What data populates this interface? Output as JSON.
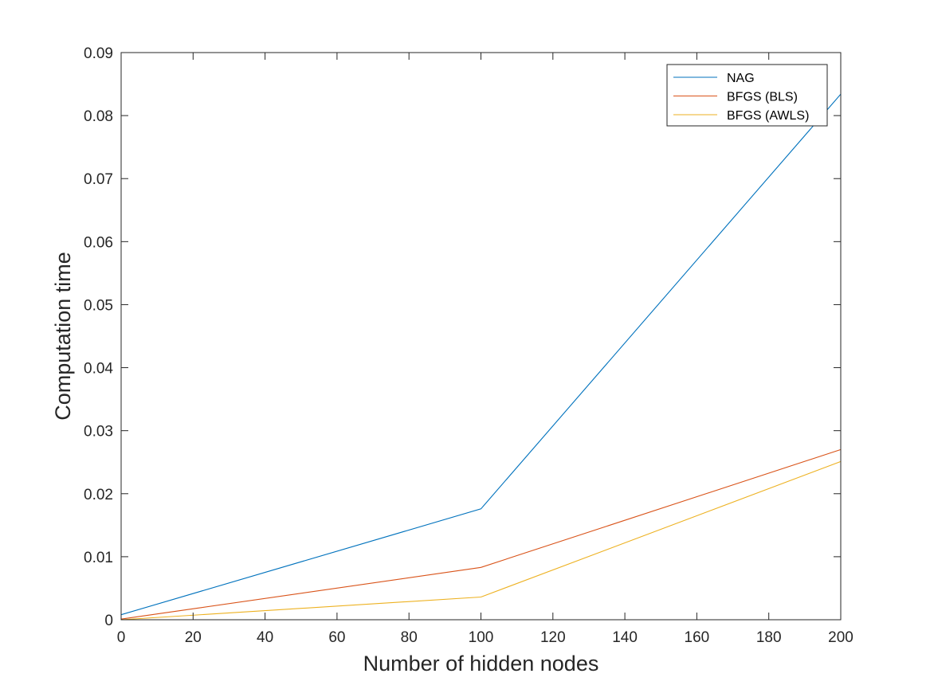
{
  "chart_data": {
    "type": "line",
    "title": "",
    "xlabel": "Number of hidden nodes",
    "ylabel": "Computation time",
    "xlim": [
      0,
      200
    ],
    "ylim": [
      0,
      0.09
    ],
    "x_ticks": [
      "0",
      "20",
      "40",
      "60",
      "80",
      "100",
      "120",
      "140",
      "160",
      "180",
      "200"
    ],
    "y_ticks": [
      "0",
      "0.01",
      "0.02",
      "0.03",
      "0.04",
      "0.05",
      "0.06",
      "0.07",
      "0.08",
      "0.09"
    ],
    "grid": false,
    "legend_position": "top-right",
    "series": [
      {
        "name": "NAG",
        "color": "#0072BD",
        "x": [
          0,
          100,
          200
        ],
        "y": [
          0.0008,
          0.0176,
          0.0834
        ]
      },
      {
        "name": "BFGS (BLS)",
        "color": "#D95319",
        "x": [
          0,
          100,
          200
        ],
        "y": [
          0.0001,
          0.0083,
          0.027
        ]
      },
      {
        "name": "BFGS (AWLS)",
        "color": "#EDB120",
        "x": [
          0,
          100,
          200
        ],
        "y": [
          0.0,
          0.0036,
          0.0251
        ]
      }
    ]
  }
}
